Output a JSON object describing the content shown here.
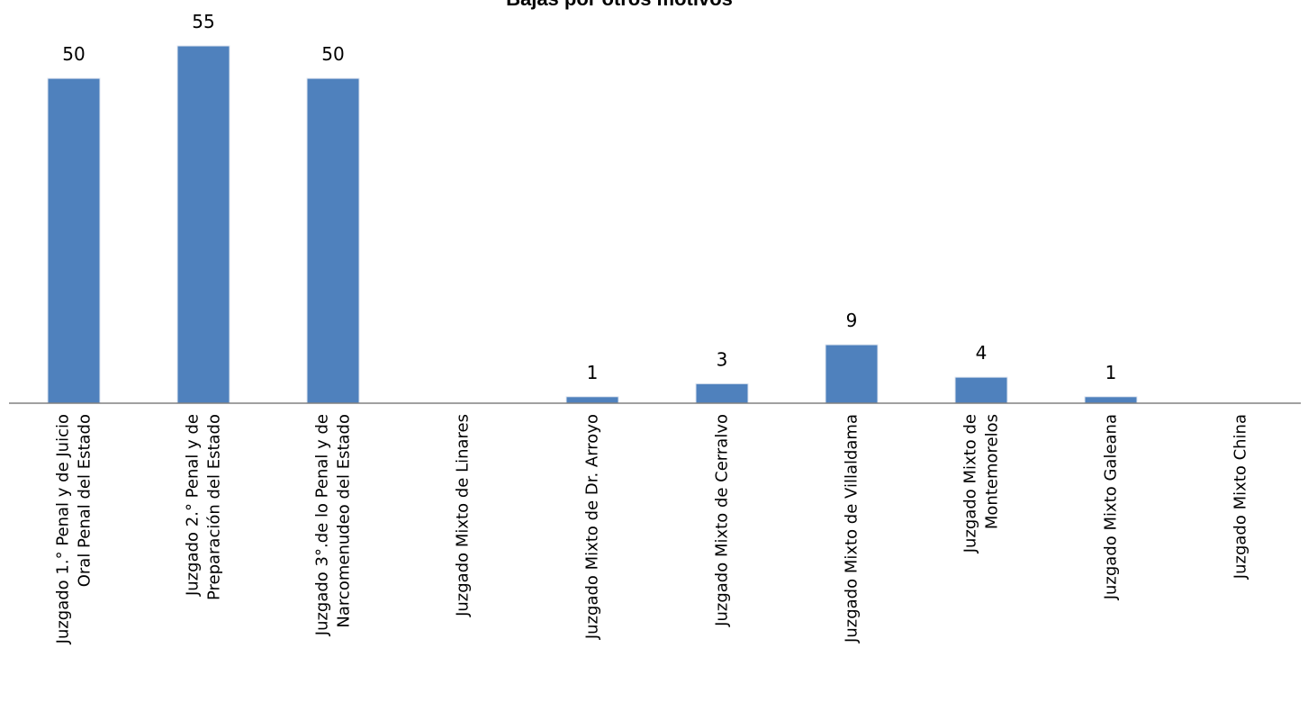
{
  "chart_data": {
    "type": "bar",
    "title": "Bajas por otros motivos",
    "categories": [
      [
        "Juzgado 1.° Penal y de Juicio",
        "Oral Penal del Estado"
      ],
      [
        "Juzgado 2.° Penal y de",
        "Preparación del Estado"
      ],
      [
        "Juzgado 3°.de lo Penal y de",
        "Narcomenudeo del Estado"
      ],
      [
        "Juzgado Mixto de Linares"
      ],
      [
        "Juzgado Mixto de  Dr. Arroyo"
      ],
      [
        "Juzgado Mixto de  Cerralvo"
      ],
      [
        "Juzgado Mixto de  Villaldama"
      ],
      [
        "Juzgado Mixto de",
        "Montemorelos"
      ],
      [
        "Juzgado Mixto Galeana"
      ],
      [
        "Juzgado Mixto China"
      ]
    ],
    "values": [
      50,
      55,
      50,
      0,
      1,
      3,
      9,
      4,
      1,
      0
    ],
    "data_labels": [
      "50",
      "55",
      "50",
      "",
      "1",
      "3",
      "9",
      "4",
      "1",
      ""
    ],
    "ylim": [
      0,
      55
    ],
    "xlabel": "",
    "ylabel": "",
    "grid": false,
    "legend": "none",
    "colors": {
      "bar": "#4F81BD",
      "axis": "#808080",
      "text": "#000000"
    }
  }
}
